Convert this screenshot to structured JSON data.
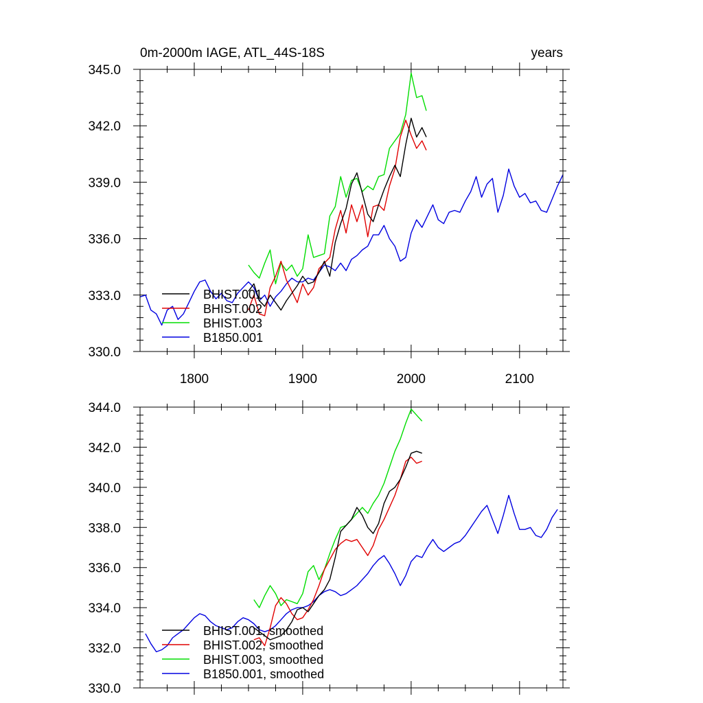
{
  "chart_data": [
    {
      "type": "line",
      "title": "0m-2000m IAGE, ATL_44S-18S",
      "units": "years",
      "xlim": [
        1750,
        2140
      ],
      "ylim": [
        330,
        345
      ],
      "xticks": [
        1800,
        1900,
        2000,
        2100
      ],
      "yticks": [
        330,
        333,
        336,
        339,
        342,
        345
      ],
      "ytick_labels": [
        "330.0",
        "333.0",
        "336.0",
        "339.0",
        "342.0",
        "345.0"
      ],
      "grid": false,
      "legend_position": "bottom-left",
      "series": [
        {
          "name": "BHIST.001",
          "color": "#000000",
          "x": [
            1850,
            1855,
            1860,
            1865,
            1870,
            1875,
            1880,
            1885,
            1890,
            1895,
            1900,
            1905,
            1910,
            1915,
            1920,
            1925,
            1930,
            1935,
            1940,
            1945,
            1950,
            1955,
            1960,
            1965,
            1970,
            1975,
            1980,
            1985,
            1990,
            1995,
            2000,
            2005,
            2010,
            2014
          ],
          "y": [
            333.2,
            333.6,
            332.7,
            332.4,
            333.0,
            332.6,
            332.2,
            332.7,
            333.1,
            333.5,
            334.0,
            333.6,
            333.7,
            334.2,
            334.8,
            334.0,
            335.8,
            336.8,
            337.6,
            338.9,
            339.5,
            338.4,
            337.3,
            336.9,
            337.8,
            338.6,
            339.3,
            339.9,
            339.3,
            341.0,
            342.4,
            341.4,
            341.9,
            341.4
          ]
        },
        {
          "name": "BHIST.002",
          "color": "#e00000",
          "x": [
            1850,
            1855,
            1860,
            1865,
            1870,
            1875,
            1880,
            1885,
            1890,
            1895,
            1900,
            1905,
            1910,
            1915,
            1920,
            1925,
            1930,
            1935,
            1940,
            1945,
            1950,
            1955,
            1960,
            1965,
            1970,
            1975,
            1980,
            1985,
            1990,
            1995,
            2000,
            2005,
            2010,
            2014
          ],
          "y": [
            332.2,
            333.0,
            332.0,
            331.9,
            333.4,
            334.0,
            334.8,
            333.8,
            333.2,
            332.6,
            333.6,
            333.0,
            333.4,
            334.4,
            334.7,
            335.0,
            336.5,
            337.5,
            336.3,
            337.8,
            336.9,
            337.8,
            336.1,
            337.7,
            337.8,
            337.5,
            338.8,
            339.7,
            341.4,
            342.3,
            341.5,
            340.8,
            341.2,
            340.7
          ]
        },
        {
          "name": "BHIST.003",
          "color": "#00dd00",
          "x": [
            1850,
            1855,
            1860,
            1865,
            1870,
            1875,
            1880,
            1885,
            1890,
            1895,
            1900,
            1905,
            1910,
            1915,
            1920,
            1925,
            1930,
            1935,
            1940,
            1945,
            1950,
            1955,
            1960,
            1965,
            1970,
            1975,
            1980,
            1985,
            1990,
            1995,
            2000,
            2005,
            2010,
            2014
          ],
          "y": [
            334.6,
            334.2,
            333.9,
            334.7,
            335.4,
            333.6,
            334.7,
            334.3,
            334.6,
            334.0,
            334.4,
            336.2,
            335.0,
            335.1,
            335.2,
            337.2,
            337.7,
            339.3,
            338.2,
            339.1,
            339.2,
            338.5,
            338.8,
            338.6,
            339.3,
            339.4,
            340.8,
            341.2,
            341.6,
            342.6,
            344.8,
            343.5,
            343.6,
            342.8
          ]
        },
        {
          "name": "B1850.001",
          "color": "#0000e0",
          "x": [
            1750,
            1755,
            1760,
            1765,
            1770,
            1775,
            1780,
            1785,
            1790,
            1795,
            1800,
            1805,
            1810,
            1815,
            1820,
            1825,
            1830,
            1835,
            1840,
            1845,
            1850,
            1855,
            1860,
            1865,
            1870,
            1875,
            1880,
            1885,
            1890,
            1895,
            1900,
            1905,
            1910,
            1915,
            1920,
            1925,
            1930,
            1935,
            1940,
            1945,
            1950,
            1955,
            1960,
            1965,
            1970,
            1975,
            1980,
            1985,
            1990,
            1995,
            2000,
            2005,
            2010,
            2015,
            2020,
            2025,
            2030,
            2035,
            2040,
            2045,
            2050,
            2055,
            2060,
            2065,
            2070,
            2075,
            2080,
            2085,
            2090,
            2095,
            2100,
            2105,
            2110,
            2115,
            2120,
            2125,
            2130,
            2135,
            2140
          ],
          "y": [
            332.9,
            333.0,
            332.2,
            332.0,
            331.4,
            332.2,
            332.4,
            331.7,
            332.0,
            332.6,
            333.2,
            333.7,
            333.8,
            333.2,
            332.8,
            333.1,
            332.7,
            332.6,
            333.1,
            333.4,
            333.7,
            333.4,
            332.7,
            333.0,
            332.4,
            332.9,
            333.2,
            333.6,
            333.9,
            333.7,
            333.7,
            333.9,
            333.8,
            334.2,
            334.6,
            334.5,
            334.3,
            334.7,
            334.3,
            334.9,
            335.1,
            335.4,
            335.6,
            336.2,
            336.2,
            336.7,
            336.0,
            335.6,
            334.8,
            335.0,
            336.3,
            337.0,
            336.6,
            337.2,
            337.8,
            337.0,
            336.8,
            337.4,
            337.5,
            337.4,
            338.0,
            338.5,
            339.3,
            338.2,
            338.9,
            339.2,
            337.4,
            338.3,
            339.7,
            338.8,
            338.2,
            338.4,
            337.9,
            338.0,
            337.5,
            337.4,
            338.1,
            338.8,
            339.4
          ]
        }
      ]
    },
    {
      "type": "line",
      "xlim": [
        1750,
        2140
      ],
      "ylim": [
        330,
        344
      ],
      "xticks": [
        1800,
        1900,
        2000,
        2100
      ],
      "yticks": [
        330,
        332,
        334,
        336,
        338,
        340,
        342,
        344
      ],
      "ytick_labels": [
        "330.0",
        "332.0",
        "334.0",
        "336.0",
        "338.0",
        "340.0",
        "342.0",
        "344.0"
      ],
      "grid": false,
      "legend_position": "bottom-left",
      "series": [
        {
          "name": "BHIST.001, smoothed",
          "color": "#000000",
          "x": [
            1855,
            1860,
            1865,
            1870,
            1875,
            1880,
            1885,
            1890,
            1895,
            1900,
            1905,
            1910,
            1915,
            1920,
            1925,
            1930,
            1935,
            1940,
            1945,
            1950,
            1955,
            1960,
            1965,
            1970,
            1975,
            1980,
            1985,
            1990,
            1995,
            2000,
            2005,
            2010
          ],
          "y": [
            333.0,
            332.8,
            332.6,
            332.4,
            332.5,
            332.6,
            332.9,
            333.3,
            333.9,
            334.0,
            333.8,
            334.2,
            334.6,
            334.9,
            335.4,
            336.5,
            337.8,
            338.1,
            338.4,
            339.0,
            338.6,
            338.0,
            337.7,
            338.2,
            339.2,
            339.8,
            340.0,
            340.4,
            341.0,
            341.7,
            341.8,
            341.7
          ]
        },
        {
          "name": "BHIST.002, smoothed",
          "color": "#e00000",
          "x": [
            1855,
            1860,
            1865,
            1870,
            1875,
            1880,
            1885,
            1890,
            1895,
            1900,
            1905,
            1910,
            1915,
            1920,
            1925,
            1930,
            1935,
            1940,
            1945,
            1950,
            1955,
            1960,
            1965,
            1970,
            1975,
            1980,
            1985,
            1990,
            1995,
            2000,
            2005,
            2010
          ],
          "y": [
            332.4,
            332.5,
            332.1,
            333.0,
            334.1,
            334.5,
            334.2,
            333.7,
            333.4,
            333.5,
            333.9,
            334.4,
            335.1,
            335.9,
            336.4,
            336.9,
            337.2,
            337.4,
            337.3,
            337.4,
            337.0,
            336.6,
            337.1,
            337.9,
            338.4,
            339.0,
            339.6,
            340.4,
            341.3,
            341.5,
            341.2,
            341.3
          ]
        },
        {
          "name": "BHIST.003, smoothed",
          "color": "#00dd00",
          "x": [
            1855,
            1860,
            1865,
            1870,
            1875,
            1880,
            1885,
            1890,
            1895,
            1900,
            1905,
            1910,
            1915,
            1920,
            1925,
            1930,
            1935,
            1940,
            1945,
            1950,
            1955,
            1960,
            1965,
            1970,
            1975,
            1980,
            1985,
            1990,
            1995,
            2000,
            2005,
            2010
          ],
          "y": [
            334.4,
            334.0,
            334.6,
            335.1,
            334.7,
            334.1,
            334.4,
            334.3,
            334.2,
            334.7,
            335.8,
            336.1,
            335.4,
            335.9,
            336.7,
            337.4,
            338.0,
            338.1,
            338.4,
            338.7,
            339.0,
            338.7,
            339.2,
            339.6,
            340.2,
            341.0,
            341.8,
            342.4,
            343.2,
            343.9,
            343.6,
            343.3
          ]
        },
        {
          "name": "B1850.001, smoothed",
          "color": "#0000e0",
          "x": [
            1755,
            1760,
            1765,
            1770,
            1775,
            1780,
            1785,
            1790,
            1795,
            1800,
            1805,
            1810,
            1815,
            1820,
            1825,
            1830,
            1835,
            1840,
            1845,
            1850,
            1855,
            1860,
            1865,
            1870,
            1875,
            1880,
            1885,
            1890,
            1895,
            1900,
            1905,
            1910,
            1915,
            1920,
            1925,
            1930,
            1935,
            1940,
            1945,
            1950,
            1955,
            1960,
            1965,
            1970,
            1975,
            1980,
            1985,
            1990,
            1995,
            2000,
            2005,
            2010,
            2015,
            2020,
            2025,
            2030,
            2035,
            2040,
            2045,
            2050,
            2055,
            2060,
            2065,
            2070,
            2075,
            2080,
            2085,
            2090,
            2095,
            2100,
            2105,
            2110,
            2115,
            2120,
            2125,
            2130,
            2135
          ],
          "y": [
            332.7,
            332.2,
            331.8,
            331.9,
            332.1,
            332.5,
            332.7,
            332.9,
            333.2,
            333.5,
            333.7,
            333.6,
            333.3,
            333.1,
            333.0,
            332.9,
            333.0,
            333.3,
            333.5,
            333.4,
            333.2,
            332.9,
            332.8,
            332.9,
            333.1,
            333.4,
            333.7,
            333.9,
            334.0,
            334.0,
            334.1,
            334.3,
            334.6,
            334.8,
            334.9,
            334.8,
            334.6,
            334.7,
            334.9,
            335.1,
            335.4,
            335.7,
            336.1,
            336.4,
            336.6,
            336.2,
            335.7,
            335.1,
            335.6,
            336.3,
            336.6,
            336.5,
            337.0,
            337.4,
            337.0,
            336.8,
            337.0,
            337.2,
            337.3,
            337.6,
            338.0,
            338.4,
            338.8,
            339.1,
            338.4,
            337.7,
            338.6,
            339.6,
            338.7,
            337.9,
            337.9,
            338.0,
            337.6,
            337.5,
            337.9,
            338.5,
            338.9
          ]
        }
      ]
    }
  ]
}
